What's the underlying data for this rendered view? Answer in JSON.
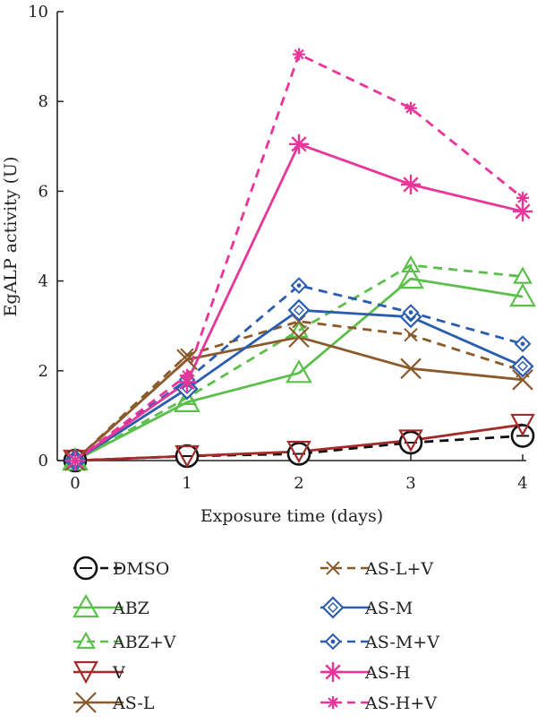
{
  "chart_data": {
    "type": "line",
    "xlabel": "Exposure time (days)",
    "ylabel": "EgALP activity (U)",
    "x": [
      0,
      1,
      2,
      3,
      4
    ],
    "xticks": [
      "0",
      "1",
      "2",
      "3",
      "4"
    ],
    "yticks": [
      "0",
      "2",
      "4",
      "6",
      "8",
      "10"
    ],
    "xlim": [
      0,
      4
    ],
    "ylim": [
      0,
      10
    ],
    "grid": false,
    "legend_position": "bottom",
    "series": [
      {
        "name": "DMSO",
        "values": [
          0,
          0.1,
          0.15,
          0.4,
          0.55
        ],
        "color": "#111111",
        "dashed": true,
        "marker": "circle-minus"
      },
      {
        "name": "ABZ",
        "values": [
          0,
          1.3,
          1.95,
          4.05,
          3.65
        ],
        "color": "#5cbf4c",
        "dashed": false,
        "marker": "triangle"
      },
      {
        "name": "ABZ+V",
        "values": [
          0,
          1.4,
          2.9,
          4.35,
          4.1
        ],
        "color": "#5cbf4c",
        "dashed": true,
        "marker": "triangle-small"
      },
      {
        "name": "V",
        "values": [
          0,
          0.1,
          0.2,
          0.45,
          0.8
        ],
        "color": "#a52a2a",
        "dashed": false,
        "marker": "triangle-down"
      },
      {
        "name": "AS-L",
        "values": [
          0,
          2.25,
          2.75,
          2.05,
          1.8
        ],
        "color": "#8b5a2b",
        "dashed": false,
        "marker": "x"
      },
      {
        "name": "AS-L+V",
        "values": [
          0,
          2.35,
          3.1,
          2.8,
          2.0
        ],
        "color": "#8b5a2b",
        "dashed": true,
        "marker": "x-small"
      },
      {
        "name": "AS-M",
        "values": [
          0,
          1.6,
          3.35,
          3.2,
          2.1
        ],
        "color": "#2a5db0",
        "dashed": false,
        "marker": "diamond"
      },
      {
        "name": "AS-M+V",
        "values": [
          0,
          1.8,
          3.9,
          3.3,
          2.6
        ],
        "color": "#2a5db0",
        "dashed": true,
        "marker": "diamond-dot"
      },
      {
        "name": "AS-H",
        "values": [
          0,
          1.75,
          7.05,
          6.15,
          5.55
        ],
        "color": "#e8359a",
        "dashed": false,
        "marker": "star"
      },
      {
        "name": "AS-H+V",
        "values": [
          0,
          1.9,
          9.05,
          7.85,
          5.85
        ],
        "color": "#e8359a",
        "dashed": true,
        "marker": "star-small"
      }
    ]
  }
}
